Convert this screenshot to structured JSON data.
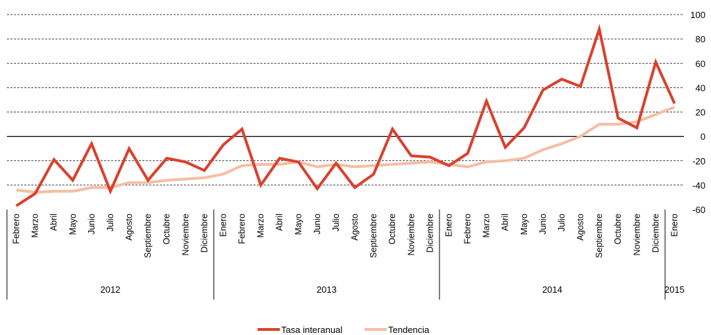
{
  "chart_data": {
    "type": "line",
    "ylim": [
      -60,
      100
    ],
    "yticks": [
      -60,
      -40,
      -20,
      0,
      20,
      40,
      60,
      80,
      100
    ],
    "y_axis_side": "right",
    "grid": "horizontal dashed",
    "legend_position": "bottom-center",
    "years": [
      {
        "label": "2012",
        "start": 0,
        "end": 10
      },
      {
        "label": "2013",
        "start": 11,
        "end": 22
      },
      {
        "label": "2014",
        "start": 23,
        "end": 34
      },
      {
        "label": "2015",
        "start": 35,
        "end": 35
      }
    ],
    "categories": [
      "Febrero",
      "Marzo",
      "Abril",
      "Mayo",
      "Junio",
      "Julio",
      "Agosto",
      "Septiembre",
      "Octubre",
      "Noviembre",
      "Diciembre",
      "Enero",
      "Febrero",
      "Marzo",
      "Abril",
      "Mayo",
      "Junio",
      "Julio",
      "Agosto",
      "Septiembre",
      "Octubre",
      "Noviembre",
      "Diciembre",
      "Enero",
      "Febrero",
      "Marzo",
      "Abril",
      "Mayo",
      "Junio",
      "Julio",
      "Agosto",
      "Septiembre",
      "Octubre",
      "Noviembre",
      "Diciembre",
      "Enero"
    ],
    "series": [
      {
        "name": "Tasa interanual",
        "color": "#d9412e",
        "values": [
          -57,
          -47,
          -19,
          -36,
          -6,
          -45,
          -10,
          -36,
          -18,
          -21,
          -28,
          -7,
          6,
          -40,
          -18,
          -21,
          -43,
          -22,
          -42,
          -31,
          6,
          -16,
          -17,
          -24,
          -14,
          29,
          -9,
          7,
          38,
          47,
          41,
          88,
          15,
          7,
          61,
          27
        ]
      },
      {
        "name": "Tendencia",
        "color": "#f6bda3",
        "values": [
          -44,
          -46,
          -45,
          -45,
          -42,
          -42,
          -38,
          -38,
          -36,
          -35,
          -34,
          -31,
          -24,
          -23,
          -23,
          -21,
          -25,
          -23,
          -25,
          -24,
          -23,
          -22,
          -21,
          -23,
          -25,
          -21,
          -20,
          -18,
          -11,
          -6,
          0,
          10,
          10,
          12,
          18,
          24
        ]
      }
    ]
  }
}
